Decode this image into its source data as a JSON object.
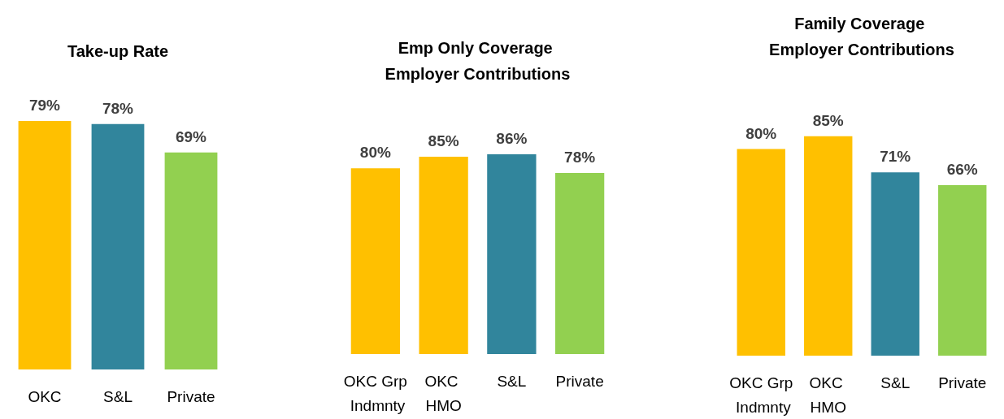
{
  "chart_data": [
    {
      "type": "bar",
      "title": "Take-up Rate",
      "categories": [
        "OKC",
        "S&L",
        "Private"
      ],
      "values": [
        79,
        78,
        69
      ],
      "value_labels": [
        "79%",
        "78%",
        "69%"
      ],
      "colors": [
        "#ffc000",
        "#31859c",
        "#92d050"
      ],
      "tick_labels": "x"
    },
    {
      "type": "bar",
      "title": "Emp Only Coverage Employer Contributions",
      "categories": [
        "OKC Grp Indmnty",
        "OKC HMO",
        "S&L",
        "Private"
      ],
      "values": [
        80,
        85,
        86,
        78
      ],
      "value_labels": [
        "80%",
        "85%",
        "86%",
        "78%"
      ],
      "colors": [
        "#ffc000",
        "#ffc000",
        "#31859c",
        "#92d050"
      ],
      "tick_labels": "x"
    },
    {
      "type": "bar",
      "title": "Family Coverage Employer Contributions",
      "categories": [
        "OKC Grp Indmnty",
        "OKC HMO",
        "S&L",
        "Private"
      ],
      "values": [
        80,
        85,
        71,
        66
      ],
      "value_labels": [
        "80%",
        "85%",
        "71%",
        "66%"
      ],
      "colors": [
        "#ffc000",
        "#ffc000",
        "#31859c",
        "#92d050"
      ],
      "tick_labels": "x"
    }
  ]
}
